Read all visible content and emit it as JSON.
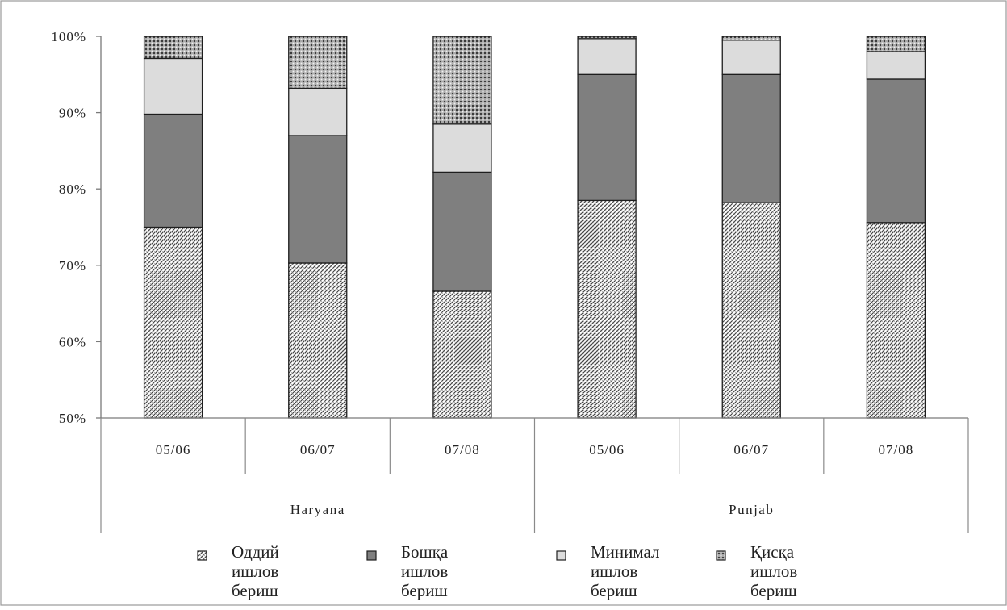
{
  "chart_data": {
    "type": "bar",
    "stacked": true,
    "normalized": true,
    "groups": [
      {
        "label": "Haryana",
        "categories": [
          "05/06",
          "06/07",
          "07/08"
        ]
      },
      {
        "label": "Punjab",
        "categories": [
          "05/06",
          "06/07",
          "07/08"
        ]
      }
    ],
    "y_ticks": [
      "50%",
      "60%",
      "70%",
      "80%",
      "90%",
      "100%"
    ],
    "ylim": [
      50,
      100
    ],
    "grid": false,
    "legend_position": "bottom",
    "series": [
      {
        "name": "Оддий ишлов бериш",
        "color": "#d9d9d9",
        "pattern": "diagonal-hatch",
        "values": [
          75.0,
          70.3,
          66.6,
          78.5,
          78.2,
          75.6
        ]
      },
      {
        "name": "Бошқа ишлов бериш",
        "color": "#808080",
        "pattern": "solid",
        "values": [
          14.8,
          16.7,
          15.6,
          16.5,
          16.8,
          18.8
        ]
      },
      {
        "name": "Минимал ишлов бериш",
        "color": "#dcdcdc",
        "pattern": "solid",
        "values": [
          7.3,
          6.2,
          6.3,
          4.7,
          4.5,
          3.6
        ]
      },
      {
        "name": "Қисқа ишлов бериш",
        "color": "#9a9a9a",
        "pattern": "dotted-grid",
        "values": [
          2.9,
          6.8,
          11.5,
          0.3,
          0.5,
          2.0
        ]
      }
    ]
  }
}
